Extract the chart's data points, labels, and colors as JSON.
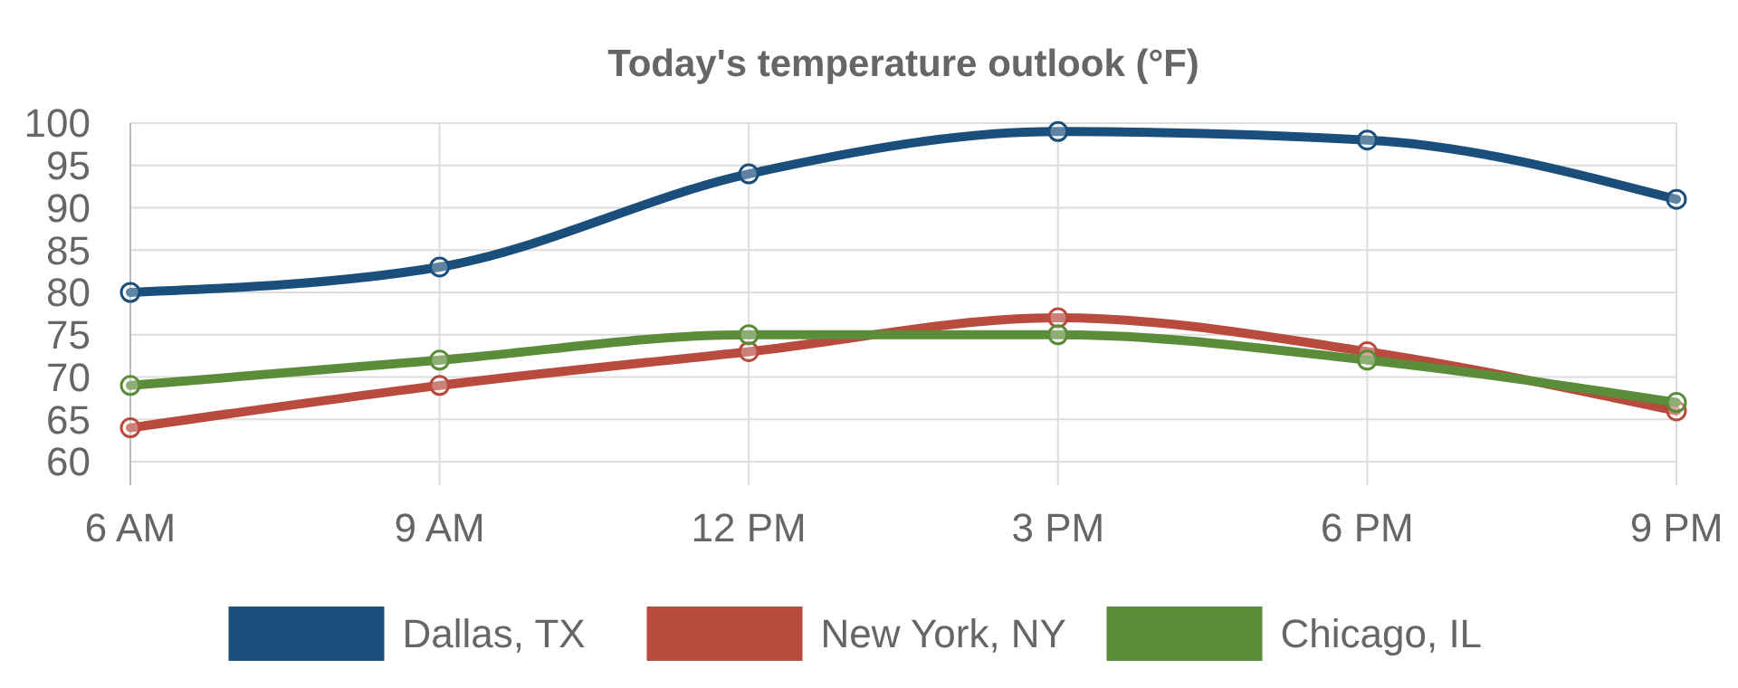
{
  "chart_data": {
    "type": "line",
    "title": "Today's temperature outlook (°F)",
    "categories": [
      "6 AM",
      "9 AM",
      "12 PM",
      "3 PM",
      "6 PM",
      "9 PM"
    ],
    "series": [
      {
        "name": "Dallas, TX",
        "color": "#1b4f7b",
        "values": [
          80,
          83,
          94,
          99,
          98,
          91
        ]
      },
      {
        "name": "New York, NY",
        "color": "#b84a3e",
        "values": [
          64,
          69,
          73,
          77,
          73,
          66
        ]
      },
      {
        "name": "Chicago, IL",
        "color": "#5b8c3a",
        "values": [
          69,
          72,
          75,
          75,
          72,
          67
        ]
      }
    ],
    "ylim": [
      60,
      100
    ],
    "yticks": [
      60,
      65,
      70,
      75,
      80,
      85,
      90,
      95,
      100
    ],
    "grid": true,
    "legend": "bottom",
    "marker": "circle",
    "line_style": "solid"
  }
}
